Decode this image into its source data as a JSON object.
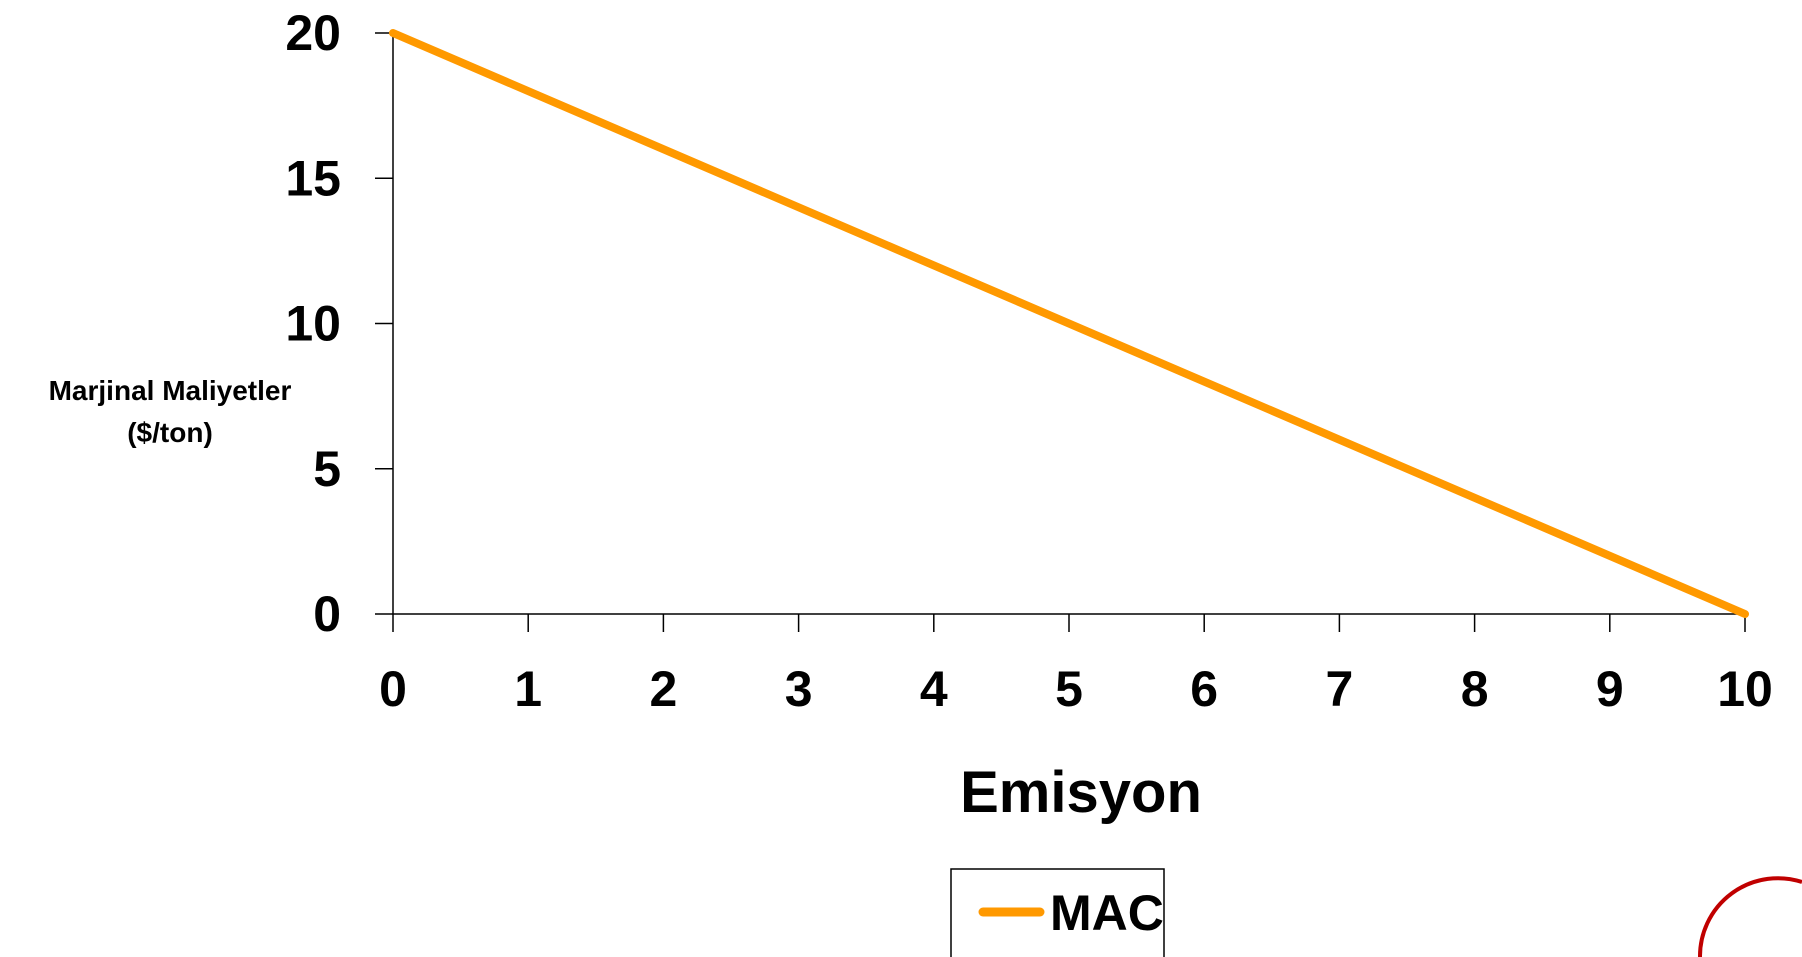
{
  "chart_data": {
    "type": "line",
    "title": "",
    "xlabel": "Emisyon",
    "ylabel_lines": [
      "Marjinal Maliyetler",
      "($/ton)"
    ],
    "x_ticks": [
      "0",
      "1",
      "2",
      "3",
      "4",
      "5",
      "6",
      "7",
      "8",
      "9",
      "10"
    ],
    "y_ticks": [
      "0",
      "5",
      "10",
      "15",
      "20"
    ],
    "xlim": [
      0,
      10
    ],
    "ylim": [
      0,
      20
    ],
    "grid": false,
    "legend_position": "bottom-center",
    "series": [
      {
        "name": "MAC",
        "color": "#FF9900",
        "x": [
          0,
          10
        ],
        "y": [
          20,
          0
        ]
      }
    ]
  },
  "decoration": {
    "corner_arc_color": "#C00000"
  }
}
